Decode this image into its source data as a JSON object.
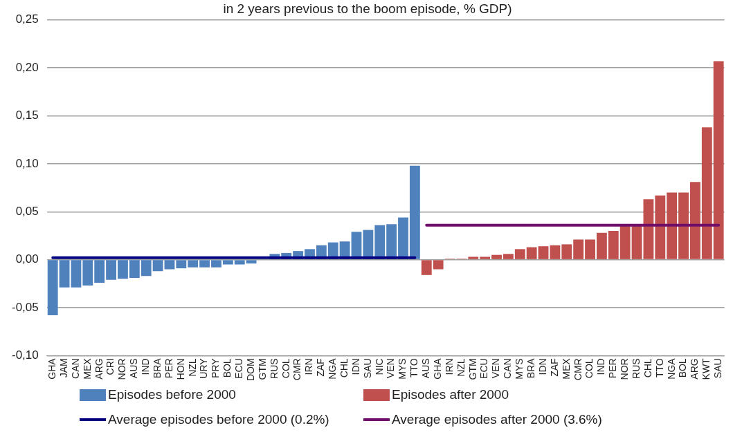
{
  "chart_data": {
    "type": "bar",
    "title": "in 2 years previous to the boom episode, % GDP)",
    "categories": [
      "GHA",
      "JAM",
      "CAN",
      "MEX",
      "ARG",
      "CRI",
      "NOR",
      "AUS",
      "IND",
      "BRA",
      "PER",
      "HON",
      "NZL",
      "URY",
      "PRY",
      "BOL",
      "ECU",
      "DOM",
      "GTM",
      "RUS",
      "COL",
      "CMR",
      "IRN",
      "ZAF",
      "NGA",
      "CHL",
      "IDN",
      "SAU",
      "NIC",
      "VEN",
      "MYS",
      "TTO",
      "AUS",
      "GHA",
      "IRN",
      "NZL",
      "GTM",
      "ECU",
      "VEN",
      "CAN",
      "MYS",
      "BRA",
      "IDN",
      "ZAF",
      "MEX",
      "CMR",
      "COL",
      "IND",
      "PER",
      "NOR",
      "RUS",
      "CHL",
      "TTO",
      "NGA",
      "BOL",
      "ARG",
      "KWT",
      "SAU"
    ],
    "series": [
      {
        "name": "Episodes before 2000",
        "color": "#4f81bd",
        "values": [
          -0.058,
          -0.029,
          -0.029,
          -0.027,
          -0.024,
          -0.021,
          -0.02,
          -0.019,
          -0.017,
          -0.012,
          -0.01,
          -0.009,
          -0.008,
          -0.008,
          -0.008,
          -0.005,
          -0.005,
          -0.004,
          0,
          0.006,
          0.007,
          0.009,
          0.011,
          0.015,
          0.018,
          0.019,
          0.029,
          0.031,
          0.036,
          0.037,
          0.044,
          0.098,
          null,
          null,
          null,
          null,
          null,
          null,
          null,
          null,
          null,
          null,
          null,
          null,
          null,
          null,
          null,
          null,
          null,
          null,
          null,
          null,
          null,
          null,
          null,
          null,
          null,
          null
        ]
      },
      {
        "name": "Episodes after 2000",
        "color": "#c0504d",
        "values": [
          null,
          null,
          null,
          null,
          null,
          null,
          null,
          null,
          null,
          null,
          null,
          null,
          null,
          null,
          null,
          null,
          null,
          null,
          null,
          null,
          null,
          null,
          null,
          null,
          null,
          null,
          null,
          null,
          null,
          null,
          null,
          null,
          -0.016,
          -0.01,
          0.001,
          0.001,
          0.003,
          0.003,
          0.005,
          0.006,
          0.011,
          0.013,
          0.014,
          0.015,
          0.016,
          0.021,
          0.021,
          0.028,
          0.03,
          0.036,
          0.036,
          0.063,
          0.067,
          0.07,
          0.07,
          0.081,
          0.138,
          0.207
        ]
      },
      {
        "name": "Average episodes before 2000 (0.2%)",
        "color": "#000080",
        "type": "line",
        "values": [
          0.002,
          0.002,
          0.002,
          0.002,
          0.002,
          0.002,
          0.002,
          0.002,
          0.002,
          0.002,
          0.002,
          0.002,
          0.002,
          0.002,
          0.002,
          0.002,
          0.002,
          0.002,
          0.002,
          0.002,
          0.002,
          0.002,
          0.002,
          0.002,
          0.002,
          0.002,
          0.002,
          0.002,
          0.002,
          0.002,
          0.002,
          0.002,
          null,
          null,
          null,
          null,
          null,
          null,
          null,
          null,
          null,
          null,
          null,
          null,
          null,
          null,
          null,
          null,
          null,
          null,
          null,
          null,
          null,
          null,
          null,
          null,
          null,
          null
        ]
      },
      {
        "name": "Average episodes after 2000 (3.6%)",
        "color": "#700f6b",
        "type": "line",
        "values": [
          null,
          null,
          null,
          null,
          null,
          null,
          null,
          null,
          null,
          null,
          null,
          null,
          null,
          null,
          null,
          null,
          null,
          null,
          null,
          null,
          null,
          null,
          null,
          null,
          null,
          null,
          null,
          null,
          null,
          null,
          null,
          null,
          0.036,
          0.036,
          0.036,
          0.036,
          0.036,
          0.036,
          0.036,
          0.036,
          0.036,
          0.036,
          0.036,
          0.036,
          0.036,
          0.036,
          0.036,
          0.036,
          0.036,
          0.036,
          0.036,
          0.036,
          0.036,
          0.036,
          0.036,
          0.036,
          0.036,
          0.036
        ]
      }
    ],
    "ylim": [
      -0.1,
      0.25
    ],
    "yticks": [
      {
        "value": -0.1,
        "label": "-0,10"
      },
      {
        "value": -0.05,
        "label": "-0,05"
      },
      {
        "value": 0,
        "label": "0,00"
      },
      {
        "value": 0.05,
        "label": "0,05"
      },
      {
        "value": 0.1,
        "label": "0,10"
      },
      {
        "value": 0.15,
        "label": "0,15"
      },
      {
        "value": 0.2,
        "label": "0,20"
      },
      {
        "value": 0.25,
        "label": "0,25"
      }
    ],
    "grid": "y",
    "legend": "bottom",
    "marker": "none",
    "line_style": "solid"
  }
}
